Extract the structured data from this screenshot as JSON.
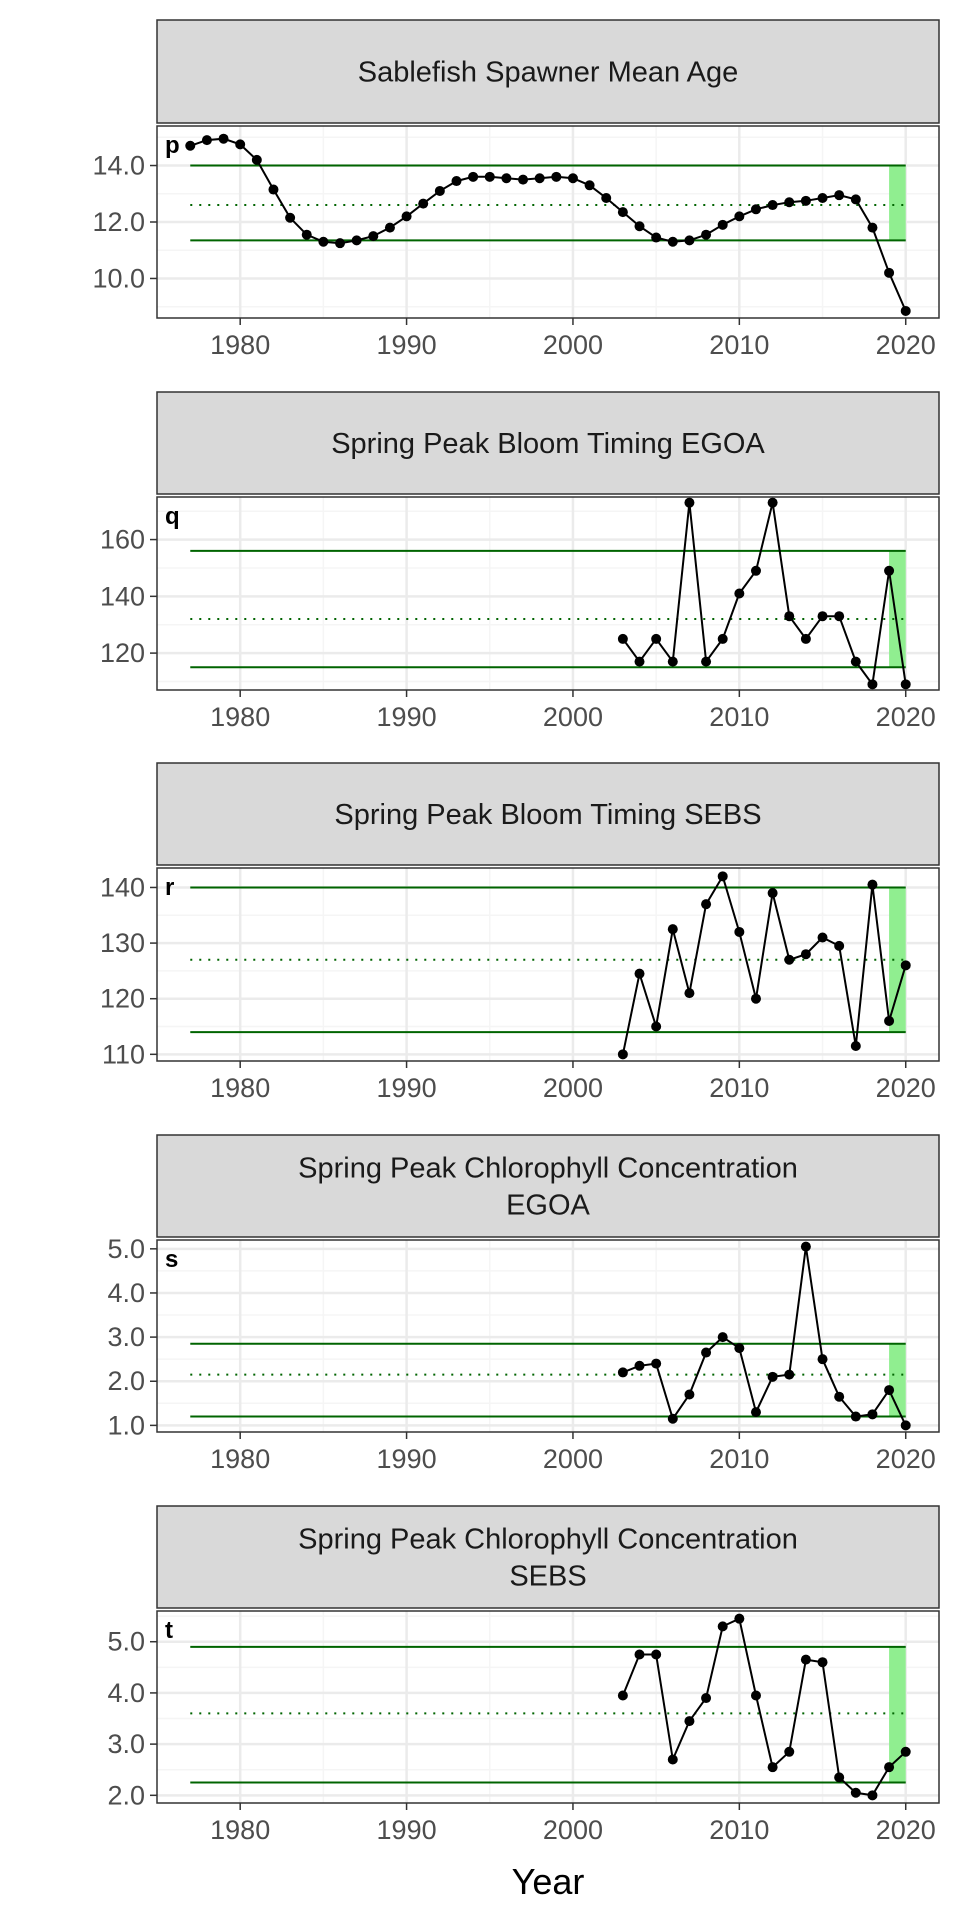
{
  "colors": {
    "strip_fill": "#d9d9d9",
    "border": "#333333",
    "grid_major": "#ebebeb",
    "grid_minor": "#f5f5f5",
    "reference_line": "#006400",
    "highlight": "#90ee90",
    "series": "#000000"
  },
  "chart_data": [
    {
      "type": "line",
      "tag": "p",
      "title": "Sablefish Spawner Mean Age",
      "title_lines": [
        "Sablefish Spawner Mean Age"
      ],
      "x": [
        1977,
        1978,
        1979,
        1980,
        1981,
        1982,
        1983,
        1984,
        1985,
        1986,
        1987,
        1988,
        1989,
        1990,
        1991,
        1992,
        1993,
        1994,
        1995,
        1996,
        1997,
        1998,
        1999,
        2000,
        2001,
        2002,
        2003,
        2004,
        2005,
        2006,
        2007,
        2008,
        2009,
        2010,
        2011,
        2012,
        2013,
        2014,
        2015,
        2016,
        2017,
        2018,
        2019,
        2020
      ],
      "y": [
        14.7,
        14.9,
        14.95,
        14.75,
        14.2,
        13.15,
        12.15,
        11.55,
        11.3,
        11.25,
        11.35,
        11.5,
        11.8,
        12.2,
        12.65,
        13.1,
        13.45,
        13.6,
        13.6,
        13.55,
        13.5,
        13.55,
        13.6,
        13.55,
        13.3,
        12.85,
        12.35,
        11.85,
        11.45,
        11.3,
        11.35,
        11.55,
        11.9,
        12.2,
        12.45,
        12.6,
        12.7,
        12.75,
        12.85,
        12.95,
        12.8,
        11.8,
        10.2,
        8.85
      ],
      "xlim": [
        1975,
        2022
      ],
      "ylim": [
        8.6,
        15.4
      ],
      "yticks": [
        10.0,
        12.0,
        14.0
      ],
      "ytick_labels": [
        "10.0",
        "12.0",
        "14.0"
      ],
      "xticks": [
        1980,
        1990,
        2000,
        2010,
        2020
      ],
      "xtick_labels": [
        "1980",
        "1990",
        "2000",
        "2010",
        "2020"
      ],
      "mean": 12.6,
      "upper": 14.0,
      "lower": 11.35,
      "ref_xrange": [
        1977,
        2020
      ],
      "highlight_xrange": [
        2019,
        2020
      ],
      "grid": true
    },
    {
      "type": "line",
      "tag": "q",
      "title": "Spring Peak Bloom Timing EGOA",
      "title_lines": [
        "Spring Peak Bloom Timing EGOA"
      ],
      "x": [
        2003,
        2004,
        2005,
        2006,
        2007,
        2008,
        2009,
        2010,
        2011,
        2012,
        2013,
        2014,
        2015,
        2016,
        2017,
        2018,
        2019,
        2020
      ],
      "y": [
        125,
        117,
        125,
        117,
        173,
        117,
        125,
        141,
        149,
        173,
        133,
        125,
        133,
        133,
        117,
        109,
        149,
        109
      ],
      "xlim": [
        1975,
        2022
      ],
      "ylim": [
        107,
        175
      ],
      "yticks": [
        120,
        140,
        160
      ],
      "ytick_labels": [
        "120",
        "140",
        "160"
      ],
      "xticks": [
        1980,
        1990,
        2000,
        2010,
        2020
      ],
      "xtick_labels": [
        "1980",
        "1990",
        "2000",
        "2010",
        "2020"
      ],
      "mean": 132,
      "upper": 156,
      "lower": 115,
      "ref_xrange": [
        1977,
        2020
      ],
      "highlight_xrange": [
        2019,
        2020
      ],
      "grid": true
    },
    {
      "type": "line",
      "tag": "r",
      "title": "Spring Peak Bloom Timing SEBS",
      "title_lines": [
        "Spring Peak Bloom Timing SEBS"
      ],
      "x": [
        2003,
        2004,
        2005,
        2006,
        2007,
        2008,
        2009,
        2010,
        2011,
        2012,
        2013,
        2014,
        2015,
        2016,
        2017,
        2018,
        2019,
        2020
      ],
      "y": [
        110,
        124.5,
        115,
        132.5,
        121,
        137,
        142,
        132,
        120,
        139,
        127,
        128,
        131,
        129.5,
        111.5,
        140.5,
        116,
        126
      ],
      "xlim": [
        1975,
        2022
      ],
      "ylim": [
        108.8,
        143.5
      ],
      "yticks": [
        110,
        120,
        130,
        140
      ],
      "ytick_labels": [
        "110",
        "120",
        "130",
        "140"
      ],
      "xticks": [
        1980,
        1990,
        2000,
        2010,
        2020
      ],
      "xtick_labels": [
        "1980",
        "1990",
        "2000",
        "2010",
        "2020"
      ],
      "mean": 127,
      "upper": 140,
      "lower": 114,
      "ref_xrange": [
        1977,
        2020
      ],
      "highlight_xrange": [
        2019,
        2020
      ],
      "grid": true
    },
    {
      "type": "line",
      "tag": "s",
      "title": "Spring Peak Chlorophyll Concentration EGOA",
      "title_lines": [
        "Spring Peak Chlorophyll Concentration",
        "EGOA"
      ],
      "x": [
        2003,
        2004,
        2005,
        2006,
        2007,
        2008,
        2009,
        2010,
        2011,
        2012,
        2013,
        2014,
        2015,
        2016,
        2017,
        2018,
        2019,
        2020
      ],
      "y": [
        2.2,
        2.35,
        2.4,
        1.15,
        1.7,
        2.65,
        3.0,
        2.75,
        1.3,
        2.1,
        2.15,
        5.05,
        2.5,
        1.65,
        1.2,
        1.25,
        1.8,
        1.0
      ],
      "xlim": [
        1975,
        2022
      ],
      "ylim": [
        0.85,
        5.2
      ],
      "yticks": [
        1.0,
        2.0,
        3.0,
        4.0,
        5.0
      ],
      "ytick_labels": [
        "1.0",
        "2.0",
        "3.0",
        "4.0",
        "5.0"
      ],
      "xticks": [
        1980,
        1990,
        2000,
        2010,
        2020
      ],
      "xtick_labels": [
        "1980",
        "1990",
        "2000",
        "2010",
        "2020"
      ],
      "mean": 2.15,
      "upper": 2.85,
      "lower": 1.2,
      "ref_xrange": [
        1977,
        2020
      ],
      "highlight_xrange": [
        2019,
        2020
      ],
      "grid": true
    },
    {
      "type": "line",
      "tag": "t",
      "title": "Spring Peak Chlorophyll Concentration SEBS",
      "title_lines": [
        "Spring Peak Chlorophyll Concentration",
        "SEBS"
      ],
      "x": [
        2003,
        2004,
        2005,
        2006,
        2007,
        2008,
        2009,
        2010,
        2011,
        2012,
        2013,
        2014,
        2015,
        2016,
        2017,
        2018,
        2019,
        2020
      ],
      "y": [
        3.95,
        4.75,
        4.75,
        2.7,
        3.45,
        3.9,
        5.3,
        5.45,
        3.95,
        2.55,
        2.85,
        4.65,
        4.6,
        2.35,
        2.05,
        2.0,
        2.55,
        2.85
      ],
      "xlim": [
        1975,
        2022
      ],
      "ylim": [
        1.85,
        5.6
      ],
      "yticks": [
        2.0,
        3.0,
        4.0,
        5.0
      ],
      "ytick_labels": [
        "2.0",
        "3.0",
        "4.0",
        "5.0"
      ],
      "xticks": [
        1980,
        1990,
        2000,
        2010,
        2020
      ],
      "xtick_labels": [
        "1980",
        "1990",
        "2000",
        "2010",
        "2020"
      ],
      "mean": 3.6,
      "upper": 4.9,
      "lower": 2.25,
      "ref_xrange": [
        1977,
        2020
      ],
      "highlight_xrange": [
        2019,
        2020
      ],
      "grid": true
    }
  ],
  "xlabel": "Year"
}
